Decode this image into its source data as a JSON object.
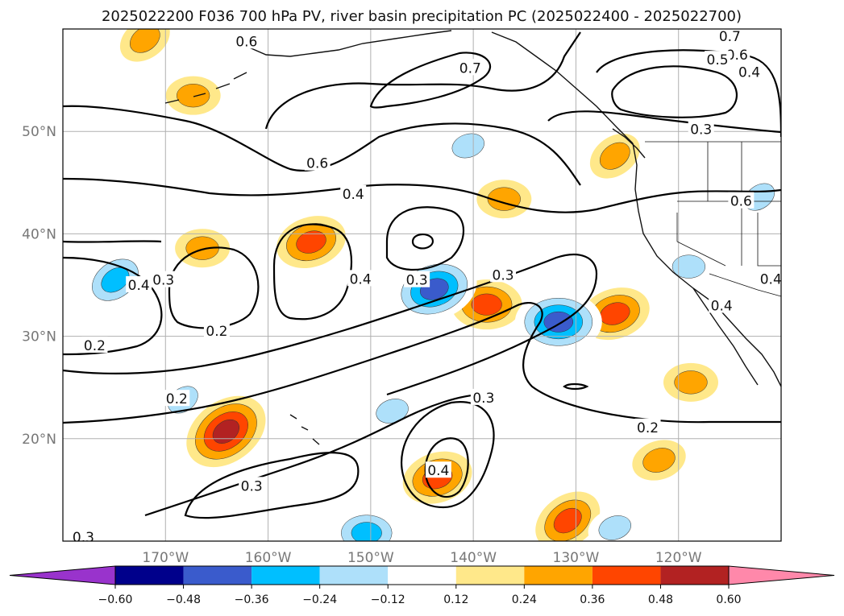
{
  "chart_data": {
    "type": "map-contour",
    "title": "2025022200 F036 700 hPa PV, river basin precipitation PC (2025022400 - 2025022700)",
    "map": {
      "lon_range": [
        -180,
        -110
      ],
      "lat_range": [
        10,
        60
      ],
      "lon_ticks": [
        -170,
        -160,
        -150,
        -140,
        -130,
        -120
      ],
      "lon_tick_labels": [
        "170°W",
        "160°W",
        "150°W",
        "140°W",
        "130°W",
        "120°W"
      ],
      "lat_ticks": [
        20,
        30,
        40,
        50
      ],
      "lat_tick_labels": [
        "20°N",
        "30°N",
        "40°N",
        "50°N"
      ],
      "grid": true
    },
    "pv_contour_labels": [
      {
        "text": "0.7",
        "lon": -140.3,
        "lat": 56.2
      },
      {
        "text": "0.7",
        "lon": -115.0,
        "lat": 59.3
      },
      {
        "text": "0.6",
        "lon": -114.3,
        "lat": 57.5
      },
      {
        "text": "0.5",
        "lon": -116.2,
        "lat": 57.0
      },
      {
        "text": "0.4",
        "lon": -113.1,
        "lat": 55.8
      },
      {
        "text": "0.3",
        "lon": -117.8,
        "lat": 50.2
      },
      {
        "text": "0.6",
        "lon": -155.2,
        "lat": 46.9
      },
      {
        "text": "0.6",
        "lon": -162.1,
        "lat": 58.8
      },
      {
        "text": "0.4",
        "lon": -151.7,
        "lat": 43.9
      },
      {
        "text": "0.6",
        "lon": -113.9,
        "lat": 43.2
      },
      {
        "text": "0.4",
        "lon": -111.0,
        "lat": 35.6
      },
      {
        "text": "0.4",
        "lon": -115.8,
        "lat": 33.0
      },
      {
        "text": "0.3",
        "lon": -170.2,
        "lat": 35.5
      },
      {
        "text": "0.4",
        "lon": -172.6,
        "lat": 35.0
      },
      {
        "text": "0.2",
        "lon": -165.0,
        "lat": 30.5
      },
      {
        "text": "0.2",
        "lon": -176.9,
        "lat": 29.1
      },
      {
        "text": "0.4",
        "lon": -151.0,
        "lat": 35.6
      },
      {
        "text": "0.3",
        "lon": -145.5,
        "lat": 35.5
      },
      {
        "text": "0.3",
        "lon": -137.1,
        "lat": 36.0
      },
      {
        "text": "0.2",
        "lon": -168.9,
        "lat": 23.9
      },
      {
        "text": "0.3",
        "lon": -139.0,
        "lat": 24.0
      },
      {
        "text": "0.2",
        "lon": -123.0,
        "lat": 21.1
      },
      {
        "text": "0.3",
        "lon": -161.6,
        "lat": 15.4
      },
      {
        "text": "0.4",
        "lon": -143.4,
        "lat": 16.9
      },
      {
        "text": "0.3",
        "lon": -178.0,
        "lat": 10.4
      }
    ],
    "precip_pc_blobs": [
      {
        "level": 0.24,
        "lon": -166.4,
        "lat": 38.6
      },
      {
        "level": 0.36,
        "lon": -155.8,
        "lat": 39.2
      },
      {
        "level": 0.48,
        "lon": -164.1,
        "lat": 20.7
      },
      {
        "level": 0.36,
        "lon": -138.7,
        "lat": 33.1
      },
      {
        "level": 0.36,
        "lon": -126.2,
        "lat": 32.2
      },
      {
        "level": 0.24,
        "lon": -126.2,
        "lat": 47.6
      },
      {
        "level": 0.24,
        "lon": -137.0,
        "lat": 43.4
      },
      {
        "level": 0.36,
        "lon": -143.5,
        "lat": 16.2
      },
      {
        "level": 0.36,
        "lon": -130.8,
        "lat": 12.0
      },
      {
        "level": 0.24,
        "lon": -118.8,
        "lat": 25.5
      },
      {
        "level": 0.24,
        "lon": -121.9,
        "lat": 17.9
      },
      {
        "level": 0.24,
        "lon": -172.0,
        "lat": 59.0
      },
      {
        "level": 0.24,
        "lon": -167.3,
        "lat": 53.5
      },
      {
        "level": -0.48,
        "lon": -143.8,
        "lat": 34.6
      },
      {
        "level": -0.36,
        "lon": -174.9,
        "lat": 35.5
      },
      {
        "level": -0.48,
        "lon": -131.7,
        "lat": 31.4
      },
      {
        "level": -0.24,
        "lon": -140.5,
        "lat": 48.6
      },
      {
        "level": -0.24,
        "lon": -112.1,
        "lat": 43.6
      },
      {
        "level": -0.24,
        "lon": -119.0,
        "lat": 36.8
      },
      {
        "level": -0.24,
        "lon": -147.9,
        "lat": 22.7
      },
      {
        "level": -0.24,
        "lon": -168.3,
        "lat": 23.8
      },
      {
        "level": -0.36,
        "lon": -150.4,
        "lat": 10.8
      },
      {
        "level": -0.24,
        "lon": -126.2,
        "lat": 11.3
      }
    ],
    "colorbar": {
      "levels": [
        -0.6,
        -0.48,
        -0.36,
        -0.24,
        -0.12,
        0.12,
        0.24,
        0.36,
        0.48,
        0.6
      ],
      "tick_labels": [
        "−0.60",
        "−0.48",
        "−0.36",
        "−0.24",
        "−0.12",
        "0.12",
        "0.24",
        "0.36",
        "0.48",
        "0.60"
      ],
      "colors": [
        "#9933cc",
        "#00008b",
        "#3a5bcc",
        "#00bfff",
        "#aee0fa",
        "#ffffff",
        "#ffe88a",
        "#ffa500",
        "#ff4500",
        "#b22222",
        "#ff88aa"
      ],
      "extend": "both"
    }
  }
}
